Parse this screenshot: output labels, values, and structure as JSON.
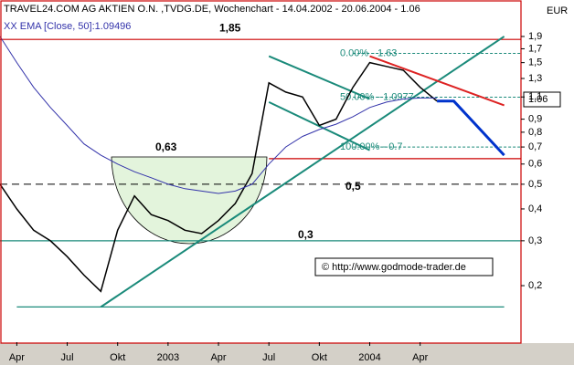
{
  "chart_data": {
    "type": "line",
    "title": "TRAVEL24.COM AG AKTIEN O.N. ,TVDG.DE, Wochenchart - 14.04.2002 - 20.06.2004 - 1.06",
    "currency": "EUR",
    "last_price": "1.06",
    "copyright": "© http://www.godmode-trader.de",
    "log_scale": true,
    "xlim": [
      "2002-03",
      "2004-10"
    ],
    "xticks": [
      {
        "value": "2002-04",
        "label": "Apr"
      },
      {
        "value": "2002-07",
        "label": "Jul"
      },
      {
        "value": "2002-10",
        "label": "Okt"
      },
      {
        "value": "2003-01",
        "label": "2003"
      },
      {
        "value": "2003-04",
        "label": "Apr"
      },
      {
        "value": "2003-07",
        "label": "Jul"
      },
      {
        "value": "2003-10",
        "label": "Okt"
      },
      {
        "value": "2004-01",
        "label": "2004"
      },
      {
        "value": "2004-04",
        "label": "Apr"
      }
    ],
    "ylim": [
      0.12,
      2.24
    ],
    "yticks": [
      {
        "value": 1.9,
        "label": "1,9"
      },
      {
        "value": 1.7,
        "label": "1,7"
      },
      {
        "value": 1.5,
        "label": "1,5"
      },
      {
        "value": 1.3,
        "label": "1,3"
      },
      {
        "value": 1.1,
        "label": "1,1"
      },
      {
        "value": 0.9,
        "label": "0,9"
      },
      {
        "value": 0.8,
        "label": "0,8"
      },
      {
        "value": 0.7,
        "label": "0,7"
      },
      {
        "value": 0.6,
        "label": "0,6"
      },
      {
        "value": 0.5,
        "label": "0,5"
      },
      {
        "value": 0.4,
        "label": "0,4"
      },
      {
        "value": 0.3,
        "label": "0,3"
      },
      {
        "value": 0.2,
        "label": "0,2"
      }
    ],
    "series": [
      {
        "color": "#000000",
        "x": [
          "2002-03",
          "2002-04",
          "2002-05",
          "2002-06",
          "2002-07",
          "2002-08",
          "2002-09",
          "2002-10",
          "2002-11",
          "2002-12",
          "2003-01",
          "2003-02",
          "2003-03",
          "2003-04",
          "2003-05",
          "2003-06",
          "2003-07",
          "2003-08",
          "2003-09",
          "2003-10",
          "2003-11",
          "2003-12",
          "2004-01",
          "2004-02",
          "2004-03",
          "2004-04",
          "2004-05"
        ],
        "values": [
          0.5,
          0.4,
          0.33,
          0.3,
          0.26,
          0.22,
          0.19,
          0.33,
          0.45,
          0.38,
          0.36,
          0.33,
          0.32,
          0.36,
          0.42,
          0.55,
          1.25,
          1.15,
          1.1,
          0.85,
          0.9,
          1.2,
          1.5,
          1.45,
          1.4,
          1.2,
          1.06
        ]
      },
      {
        "name": "XX EMA [Close, 50]:1.09496",
        "color": "#3333aa",
        "x": [
          "2002-03",
          "2002-04",
          "2002-05",
          "2002-06",
          "2002-07",
          "2002-08",
          "2002-09",
          "2002-10",
          "2002-11",
          "2002-12",
          "2003-01",
          "2003-02",
          "2003-03",
          "2003-04",
          "2003-05",
          "2003-06",
          "2003-07",
          "2003-08",
          "2003-09",
          "2003-10",
          "2003-11",
          "2003-12",
          "2004-01",
          "2004-02",
          "2004-03",
          "2004-04",
          "2004-05"
        ],
        "values": [
          1.9,
          1.5,
          1.2,
          1.0,
          0.85,
          0.72,
          0.65,
          0.6,
          0.56,
          0.53,
          0.5,
          0.48,
          0.47,
          0.46,
          0.47,
          0.5,
          0.6,
          0.7,
          0.77,
          0.82,
          0.86,
          0.92,
          1.0,
          1.05,
          1.08,
          1.09,
          1.09
        ]
      },
      {
        "color": "#0033cc",
        "x": [
          "2004-05",
          "2004-06",
          "2004-09"
        ],
        "values": [
          1.06,
          1.06,
          0.65
        ]
      }
    ],
    "levels": [
      {
        "value": 1.85,
        "label": "1,85",
        "color": "#cc0000",
        "from": "2002-03",
        "to": "2004-10"
      },
      {
        "value": 0.63,
        "label": "0,63",
        "color": "#cc0000",
        "from": "2003-07",
        "to": "2004-10"
      },
      {
        "value": 0.5,
        "label": "0,5",
        "color": "#000000",
        "from": "2002-03",
        "to": "2004-10",
        "dashed": true
      },
      {
        "value": 0.3,
        "label": "0,3",
        "color": "#1a8a7a",
        "from": "2002-03",
        "to": "2004-10"
      },
      {
        "value": 0.165,
        "color": "#1a8a7a",
        "from": "2002-04",
        "to": "2004-09"
      },
      {
        "value": 1.63,
        "label": "0.00% - 1.63",
        "color": "#1a8a7a",
        "from": "2003-12",
        "to": "2004-10",
        "dashed": true
      },
      {
        "value": 1.0977,
        "label": "50.00% - 1.0977",
        "color": "#1a8a7a",
        "from": "2003-12",
        "to": "2004-10",
        "dashed": true
      },
      {
        "value": 0.7,
        "label": "100.00% - 0.7",
        "color": "#1a8a7a",
        "from": "2003-12",
        "to": "2004-10",
        "dashed": true
      }
    ],
    "trendlines": [
      {
        "color": "#1a8a7a",
        "x": [
          "2002-09",
          "2004-09"
        ],
        "values": [
          0.165,
          1.9
        ]
      },
      {
        "color": "#1a8a7a",
        "x": [
          "2003-07",
          "2004-01"
        ],
        "values": [
          1.59,
          1.08
        ]
      },
      {
        "color": "#1a8a7a",
        "x": [
          "2003-07",
          "2004-01"
        ],
        "values": [
          1.05,
          0.68
        ]
      },
      {
        "color": "#dd2222",
        "x": [
          "2004-01",
          "2004-09"
        ],
        "values": [
          1.59,
          1.02
        ]
      }
    ]
  }
}
